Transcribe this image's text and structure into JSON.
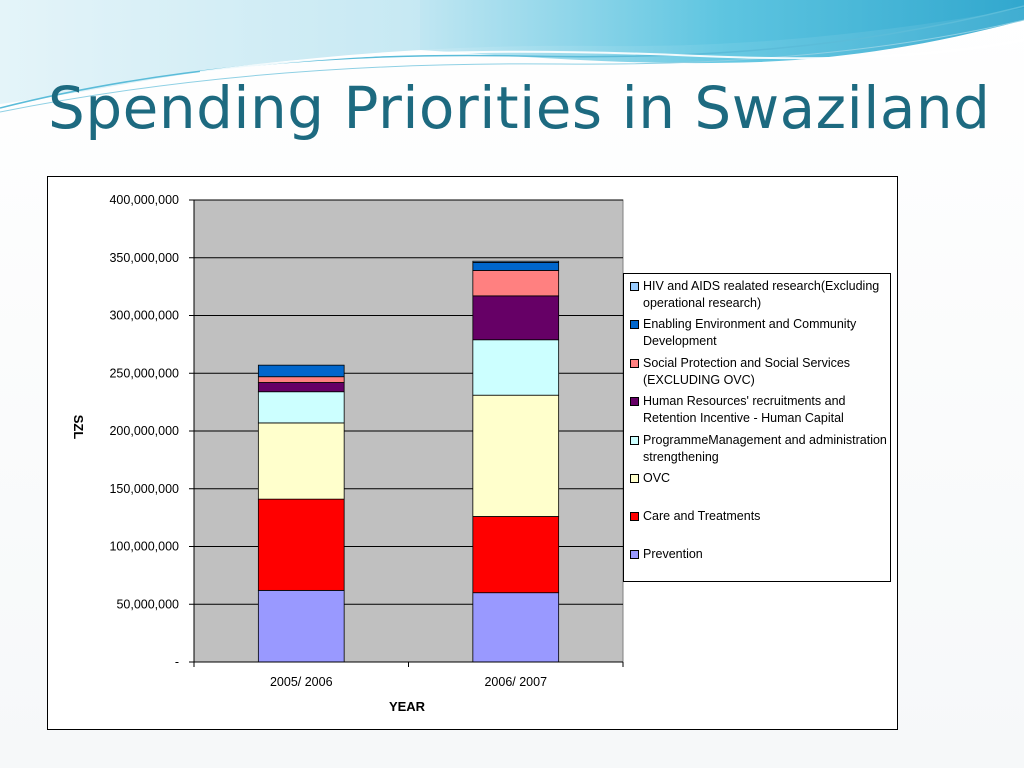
{
  "slide": {
    "title": "Spending Priorities in Swaziland"
  },
  "chart_data": {
    "type": "bar",
    "stacked": true,
    "title": "",
    "xlabel": "YEAR",
    "ylabel": "SZL",
    "ylim": [
      0,
      400000000
    ],
    "ytick_labels": [
      "-",
      "50,000,000",
      "100,000,000",
      "150,000,000",
      "200,000,000",
      "250,000,000",
      "300,000,000",
      "350,000,000",
      "400,000,000"
    ],
    "categories": [
      "2005/ 2006",
      "2006/ 2007"
    ],
    "grid": true,
    "plot_background": "#c0c0c0",
    "legend_position": "right",
    "series": [
      {
        "name": "Prevention",
        "color": "#9999ff",
        "values": [
          62000000,
          60000000
        ]
      },
      {
        "name": "Care and Treatments",
        "color": "#ff0000",
        "values": [
          79000000,
          66000000
        ]
      },
      {
        "name": "OVC",
        "color": "#ffffcc",
        "values": [
          66000000,
          105000000
        ]
      },
      {
        "name": "ProgrammeManagement and administration strengthening",
        "color": "#ccffff",
        "values": [
          27000000,
          48000000
        ]
      },
      {
        "name": "Human Resources' recruitments and Retention Incentive - Human Capital",
        "color": "#660066",
        "values": [
          8000000,
          38000000
        ]
      },
      {
        "name": "Social Protection and Social Services (EXCLUDING OVC)",
        "color": "#ff8080",
        "values": [
          5000000,
          22000000
        ]
      },
      {
        "name": "Enabling Environment and Community Development",
        "color": "#0066cc",
        "values": [
          10000000,
          7000000
        ]
      },
      {
        "name": "HIV and AIDS realated research(Excluding operational research)",
        "color": "#99ccff",
        "values": [
          0,
          1000000
        ]
      }
    ]
  }
}
